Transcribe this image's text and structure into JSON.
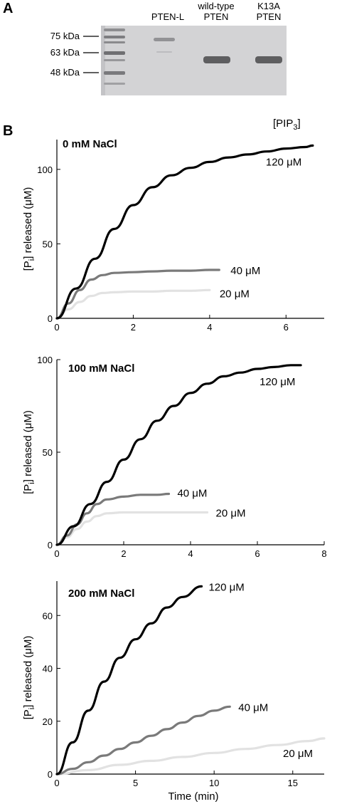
{
  "panel_a": {
    "letter": "A",
    "lanes": [
      {
        "lines": [
          "PTEN-L"
        ]
      },
      {
        "lines": [
          "wild-type",
          "PTEN"
        ]
      },
      {
        "lines": [
          "K13A",
          "PTEN"
        ]
      }
    ],
    "markers": [
      "75 kDa",
      "63 kDa",
      "48 kDa"
    ]
  },
  "panel_b": {
    "letter": "B",
    "legend_title": "[PIP",
    "legend_title_sub": "3",
    "legend_title_end": "]",
    "ylabel_prefix": "[P",
    "ylabel_sub": "i",
    "ylabel_rest": "] released (μM)",
    "xlabel": "Time (min)"
  },
  "colors": {
    "s120": "#000000",
    "s40": "#7a7a7a",
    "s20": "#e2e2e2",
    "gel_bg": "#d3d3d5",
    "gel_band": "#5e5e60"
  },
  "chart_data": [
    {
      "type": "line",
      "title": "0 mM NaCl",
      "xlabel": "",
      "ylabel": "[Pi] released (μM)",
      "xlim": [
        0,
        7
      ],
      "ylim": [
        0,
        120
      ],
      "xticks": [
        0,
        2,
        4,
        6
      ],
      "yticks": [
        0,
        50,
        100
      ],
      "series": [
        {
          "name": "120 μM",
          "color_key": "s120",
          "x": [
            0,
            0.5,
            1,
            1.5,
            2,
            2.5,
            3,
            3.5,
            4,
            4.5,
            5,
            5.5,
            6,
            6.5,
            6.7
          ],
          "y": [
            0,
            20,
            40,
            60,
            76,
            88,
            96,
            101,
            105,
            108,
            110,
            112,
            114,
            115,
            116
          ]
        },
        {
          "name": "40 μM",
          "color_key": "s40",
          "x": [
            0,
            0.3,
            0.6,
            0.9,
            1.2,
            1.5,
            2,
            2.5,
            3,
            3.5,
            4,
            4.25
          ],
          "y": [
            0,
            10,
            19,
            26,
            29,
            30.5,
            31,
            31.5,
            32,
            32,
            32.5,
            32.5
          ]
        },
        {
          "name": "20 μM",
          "color_key": "s20",
          "x": [
            0,
            0.3,
            0.6,
            0.9,
            1.2,
            1.5,
            2,
            2.5,
            3,
            3.5,
            4
          ],
          "y": [
            0,
            6,
            11,
            15,
            17,
            17.5,
            18,
            18,
            18.5,
            18.5,
            19
          ]
        }
      ]
    },
    {
      "type": "line",
      "title": "100 mM NaCl",
      "xlabel": "",
      "ylabel": "[Pi] released (μM)",
      "xlim": [
        0,
        8
      ],
      "ylim": [
        0,
        100
      ],
      "xticks": [
        0,
        2,
        4,
        6,
        8
      ],
      "yticks": [
        0,
        50,
        100
      ],
      "series": [
        {
          "name": "120 μM",
          "color_key": "s120",
          "x": [
            0,
            0.5,
            1,
            1.5,
            2,
            2.5,
            3,
            3.5,
            4,
            4.5,
            5,
            5.5,
            6,
            6.5,
            7,
            7.3
          ],
          "y": [
            0,
            10,
            22,
            34,
            46,
            57,
            67,
            75,
            82,
            87,
            91,
            93,
            95,
            96,
            97,
            97
          ]
        },
        {
          "name": "40 μM",
          "color_key": "s40",
          "x": [
            0,
            0.3,
            0.6,
            0.9,
            1.2,
            1.5,
            2,
            2.5,
            3,
            3.35
          ],
          "y": [
            0,
            5,
            11,
            17,
            22,
            24.5,
            26,
            27,
            27,
            27.5
          ]
        },
        {
          "name": "20 μM",
          "color_key": "s20",
          "x": [
            0,
            0.3,
            0.6,
            0.9,
            1.2,
            1.5,
            2,
            3,
            4,
            4.5
          ],
          "y": [
            0,
            4,
            8.5,
            12.5,
            15.5,
            17,
            17.5,
            17.5,
            17.5,
            17.5
          ]
        }
      ]
    },
    {
      "type": "line",
      "title": "200 mM NaCl",
      "xlabel": "Time (min)",
      "ylabel": "[Pi] released (μM)",
      "xlim": [
        0,
        17
      ],
      "ylim": [
        0,
        73
      ],
      "xticks": [
        0,
        5,
        10,
        15
      ],
      "yticks": [
        0,
        20,
        40,
        60
      ],
      "series": [
        {
          "name": "120 μM",
          "color_key": "s120",
          "x": [
            0,
            1,
            2,
            3,
            4,
            5,
            6,
            7,
            8,
            9.2
          ],
          "y": [
            0,
            12,
            24,
            35,
            44,
            51,
            57,
            63,
            67,
            71
          ]
        },
        {
          "name": "40 μM",
          "color_key": "s40",
          "x": [
            0,
            1,
            2,
            3,
            4,
            5,
            6,
            7,
            8,
            9,
            10,
            11
          ],
          "y": [
            0,
            2,
            4.5,
            7,
            9.5,
            12,
            14.5,
            17,
            19.5,
            22,
            24,
            25.5
          ]
        },
        {
          "name": "20 μM",
          "color_key": "s20",
          "x": [
            0,
            2,
            4,
            6,
            8,
            10,
            12,
            14,
            16,
            17
          ],
          "y": [
            0,
            1.5,
            3.5,
            5,
            6.5,
            8,
            9.5,
            11,
            12.5,
            13.5
          ]
        }
      ]
    }
  ]
}
